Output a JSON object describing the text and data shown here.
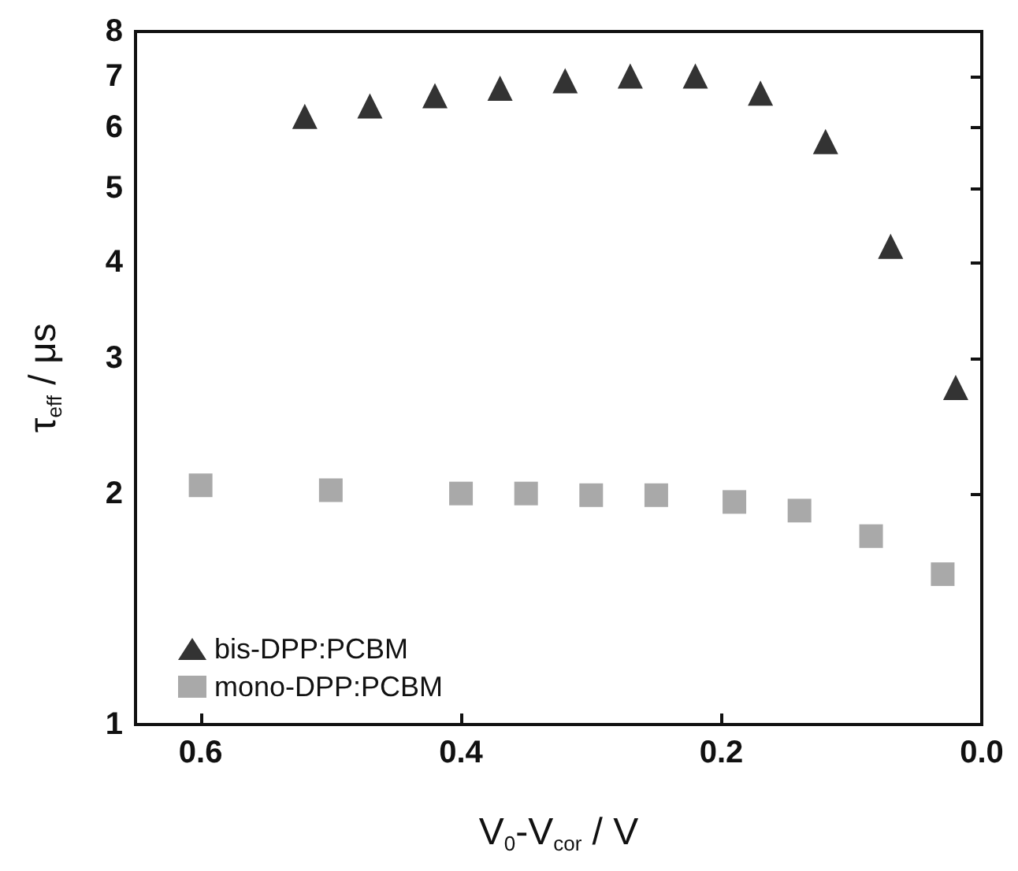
{
  "chart_data": {
    "type": "scatter",
    "xlabel": "V$_{0}$-V$_{cor}$ / V",
    "ylabel": "τ$_{eff}$ / μs",
    "xlim": [
      0.65,
      0.0
    ],
    "xticks": [
      {
        "value": 0.6,
        "label": "0.6"
      },
      {
        "value": 0.4,
        "label": "0.4"
      },
      {
        "value": 0.2,
        "label": "0.2"
      },
      {
        "value": 0.0,
        "label": "0.0"
      }
    ],
    "ylim": [
      1,
      8
    ],
    "yticks": [
      1,
      2,
      3,
      4,
      5,
      6,
      7,
      8
    ],
    "log": "y",
    "grid": false,
    "legend": "bottom left",
    "series": [
      {
        "name": "bis-DPP:PCBM",
        "color": "#000000",
        "marker": "triangle",
        "x": [
          0.52,
          0.47,
          0.42,
          0.37,
          0.32,
          0.27,
          0.22,
          0.17,
          0.12,
          0.07,
          0.02
        ],
        "values": [
          6.2,
          6.4,
          6.6,
          6.75,
          6.9,
          7.0,
          7.0,
          6.65,
          5.75,
          4.2,
          2.75
        ]
      },
      {
        "name": "mono-DPP:PCBM",
        "color": "#939393",
        "marker": "square",
        "x": [
          0.6,
          0.5,
          0.4,
          0.35,
          0.3,
          0.25,
          0.19,
          0.14,
          0.085,
          0.03
        ],
        "values": [
          2.05,
          2.02,
          2.0,
          2.0,
          1.99,
          1.99,
          1.95,
          1.9,
          1.76,
          1.57
        ]
      }
    ]
  }
}
